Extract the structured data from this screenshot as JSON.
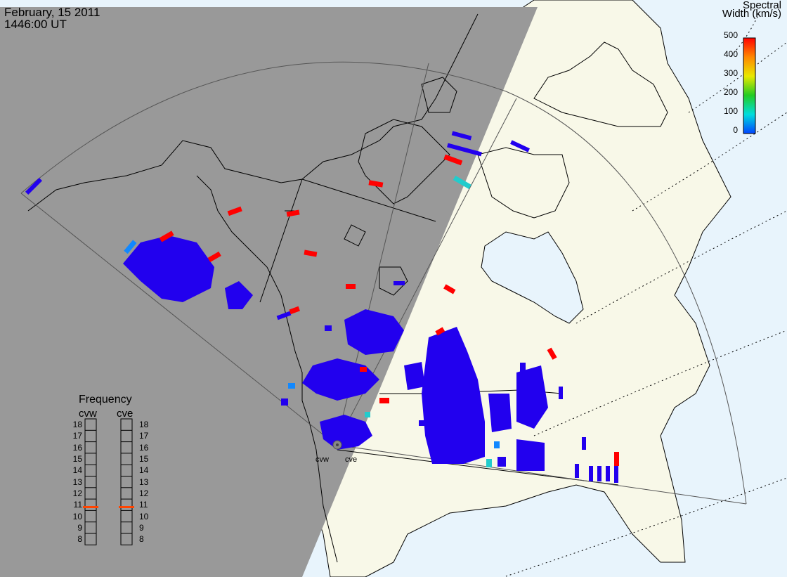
{
  "header": {
    "date": "February, 15 2011",
    "time": "1446:00 UT"
  },
  "colorbar": {
    "title_line1": "Spectral",
    "title_line2": "Width (km/s)",
    "ticks": [
      "500",
      "400",
      "300",
      "200",
      "100",
      "0"
    ],
    "colors": [
      "#ff0000",
      "#ff8800",
      "#e8e800",
      "#22cc22",
      "#00dddd",
      "#0044ff"
    ]
  },
  "frequency": {
    "title": "Frequency",
    "radars": [
      "cvw",
      "cve"
    ],
    "levels": [
      "18",
      "17",
      "16",
      "15",
      "14",
      "13",
      "12",
      "11",
      "10",
      "9",
      "8"
    ],
    "cvw_mhz": 10.8,
    "cve_mhz": 10.8,
    "marker_color": "#ff4400"
  },
  "sites": {
    "west": "cvw",
    "east": "cve"
  },
  "colors": {
    "night": "#999999",
    "land": "#f8f8e8",
    "ocean": "#e8f4fc",
    "scatter_main": "#2200ee",
    "scatter_red": "#ff0000",
    "scatter_cyan": "#22cccc",
    "scatter_lightblue": "#1188ff"
  }
}
